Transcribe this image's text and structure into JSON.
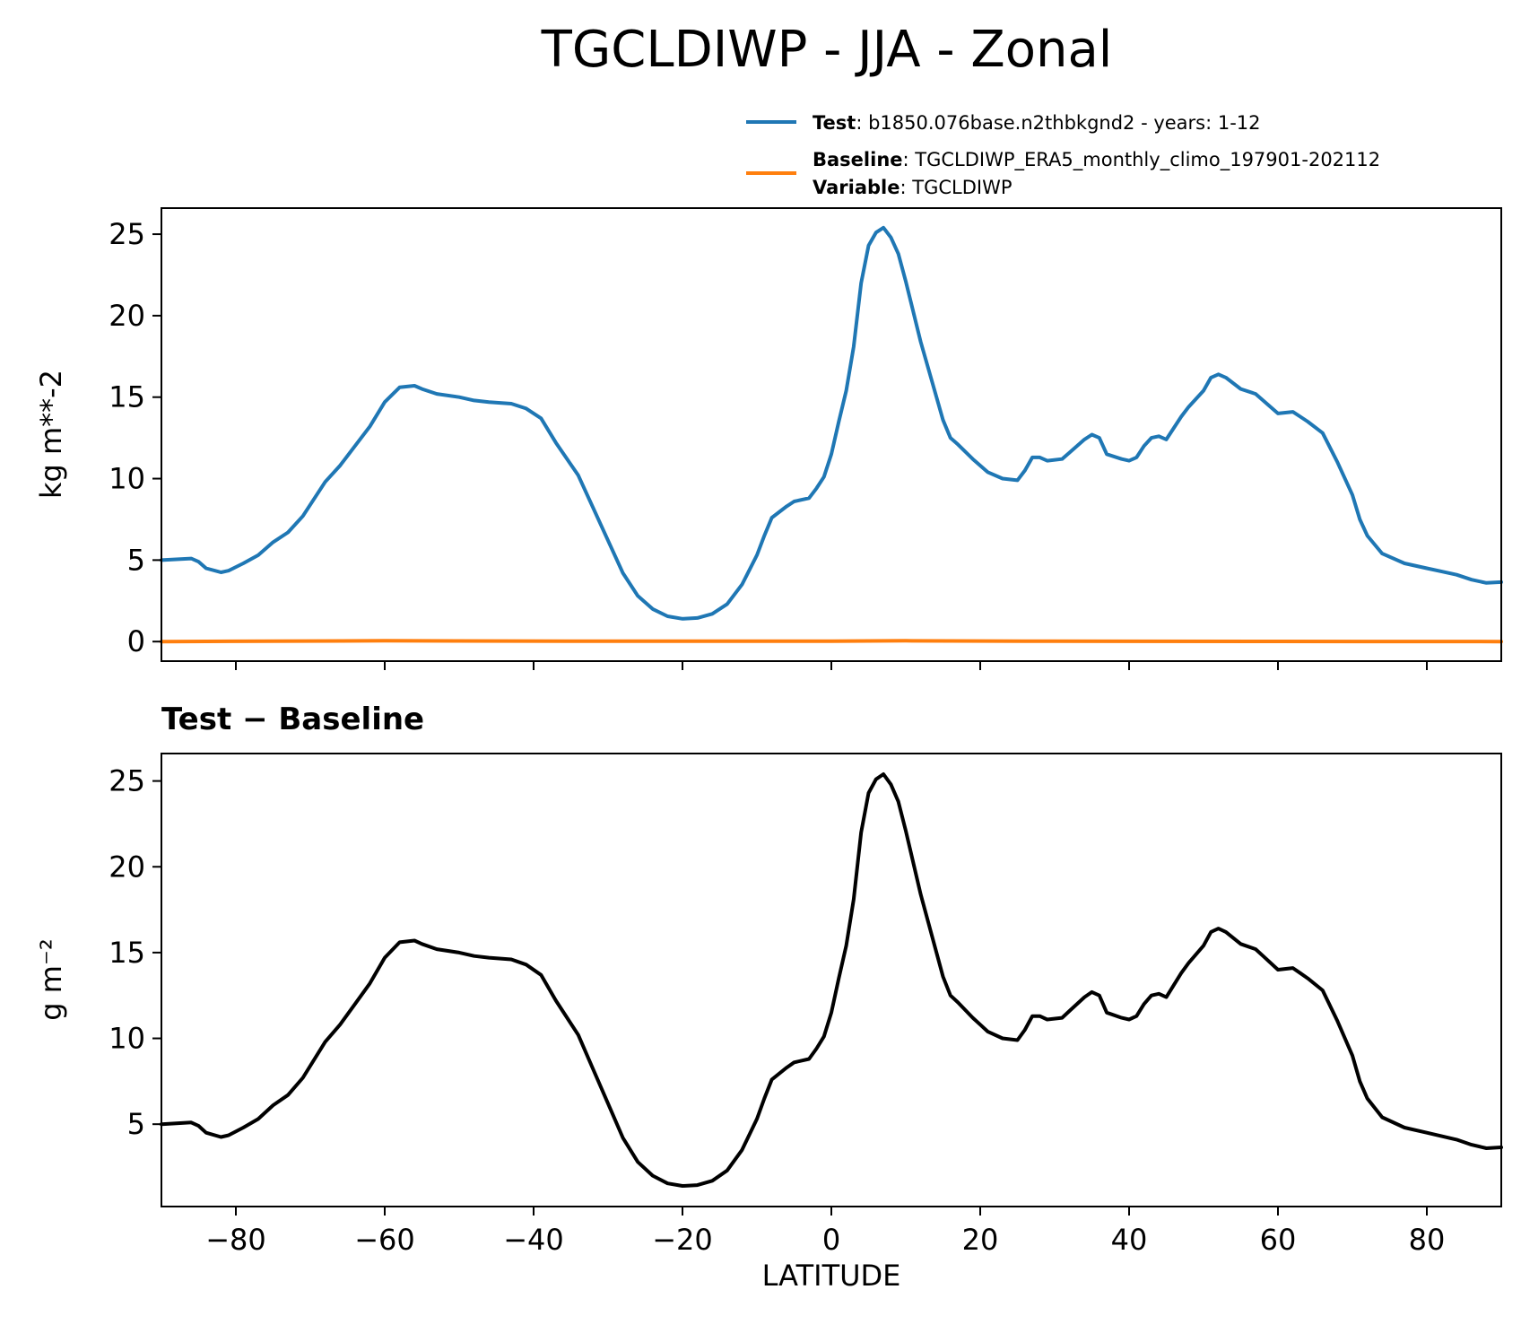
{
  "figure": {
    "title": "TGCLDIWP - JJA - Zonal"
  },
  "legend": {
    "test_key": "Test",
    "test_value": "b1850.076base.n2thbkgnd2 - years: 1-12",
    "baseline_key": "Baseline",
    "baseline_value": "TGCLDIWP_ERA5_monthly_climo_197901-202112",
    "variable_key": "Variable",
    "variable_value": "TGCLDIWP",
    "separator": ": "
  },
  "chart_data": [
    {
      "type": "line",
      "panel": "top",
      "title": "",
      "xlabel": "",
      "ylabel": "kg m**-2",
      "xlim": [
        -90,
        90
      ],
      "ylim": [
        -1.2,
        26.6
      ],
      "xticks": [
        -80,
        -60,
        -40,
        -20,
        0,
        20,
        40,
        60,
        80
      ],
      "yticks": [
        0,
        5,
        10,
        15,
        20,
        25
      ],
      "grid": false,
      "legend_position": "above, right",
      "series": [
        {
          "name": "Test",
          "color": "#1f77b4",
          "x": [
            -90,
            -88,
            -86,
            -85,
            -84,
            -82,
            -81,
            -79,
            -77,
            -75,
            -73,
            -71,
            -68,
            -66,
            -64,
            -62,
            -60,
            -58,
            -56,
            -55,
            -53,
            -50,
            -48,
            -46,
            -43,
            -41,
            -39,
            -37,
            -34,
            -32,
            -30,
            -28,
            -26,
            -24,
            -22,
            -20,
            -18,
            -16,
            -14,
            -12,
            -10,
            -9,
            -8,
            -6,
            -5,
            -3,
            -2,
            -1,
            0,
            1,
            2,
            3,
            4,
            5,
            6,
            7,
            8,
            9,
            10,
            12,
            13,
            15,
            16,
            17,
            19,
            20,
            21,
            23,
            25,
            26,
            27,
            28,
            29,
            31,
            32,
            34,
            35,
            36,
            37,
            39,
            40,
            41,
            42,
            43,
            44,
            45,
            47,
            48,
            50,
            51,
            52,
            53,
            55,
            57,
            58,
            60,
            62,
            63,
            64,
            66,
            68,
            70,
            71,
            72,
            74,
            77,
            80,
            82,
            84,
            86,
            88,
            90
          ],
          "values": [
            5.0,
            5.05,
            5.1,
            4.9,
            4.5,
            4.25,
            4.35,
            4.8,
            5.3,
            6.1,
            6.7,
            7.7,
            9.8,
            10.8,
            12.0,
            13.2,
            14.7,
            15.6,
            15.7,
            15.5,
            15.2,
            15.0,
            14.8,
            14.7,
            14.6,
            14.3,
            13.7,
            12.2,
            10.2,
            8.2,
            6.2,
            4.2,
            2.8,
            2.0,
            1.55,
            1.4,
            1.45,
            1.7,
            2.3,
            3.5,
            5.3,
            6.5,
            7.6,
            8.3,
            8.6,
            8.8,
            9.4,
            10.1,
            11.5,
            13.5,
            15.4,
            18.1,
            22.0,
            24.3,
            25.1,
            25.4,
            24.8,
            23.8,
            22.1,
            18.4,
            16.8,
            13.6,
            12.5,
            12.1,
            11.2,
            10.8,
            10.4,
            10.0,
            9.9,
            10.5,
            11.3,
            11.3,
            11.1,
            11.2,
            11.6,
            12.4,
            12.7,
            12.5,
            11.5,
            11.2,
            11.1,
            11.3,
            12.0,
            12.5,
            12.6,
            12.4,
            13.8,
            14.4,
            15.4,
            16.2,
            16.4,
            16.2,
            15.5,
            15.2,
            14.8,
            14.0,
            14.1,
            13.8,
            13.5,
            12.8,
            11.0,
            9.0,
            7.5,
            6.5,
            5.4,
            4.8,
            4.5,
            4.3,
            4.1,
            3.8,
            3.6,
            3.65
          ]
        },
        {
          "name": "Baseline",
          "color": "#ff7f0e",
          "x": [
            -90,
            -60,
            -30,
            0,
            10,
            30,
            60,
            90
          ],
          "values": [
            0.0,
            0.05,
            0.02,
            0.02,
            0.05,
            0.02,
            0.01,
            0.0
          ]
        }
      ]
    },
    {
      "type": "line",
      "panel": "bottom",
      "title": "Test − Baseline",
      "xlabel": "LATITUDE",
      "ylabel": "g m⁻²",
      "xlim": [
        -90,
        90
      ],
      "ylim": [
        0.2,
        26.6
      ],
      "xticks": [
        -80,
        -60,
        -40,
        -20,
        0,
        20,
        40,
        60,
        80
      ],
      "xticklabels": [
        "−80",
        "−60",
        "−40",
        "−20",
        "0",
        "20",
        "40",
        "60",
        "80"
      ],
      "yticks": [
        5,
        10,
        15,
        20,
        25
      ],
      "grid": false,
      "series": [
        {
          "color": "#000000",
          "x": [
            -90,
            -88,
            -86,
            -85,
            -84,
            -82,
            -81,
            -79,
            -77,
            -75,
            -73,
            -71,
            -68,
            -66,
            -64,
            -62,
            -60,
            -58,
            -56,
            -55,
            -53,
            -50,
            -48,
            -46,
            -43,
            -41,
            -39,
            -37,
            -34,
            -32,
            -30,
            -28,
            -26,
            -24,
            -22,
            -20,
            -18,
            -16,
            -14,
            -12,
            -10,
            -9,
            -8,
            -6,
            -5,
            -3,
            -2,
            -1,
            0,
            1,
            2,
            3,
            4,
            5,
            6,
            7,
            8,
            9,
            10,
            12,
            13,
            15,
            16,
            17,
            19,
            20,
            21,
            23,
            25,
            26,
            27,
            28,
            29,
            31,
            32,
            34,
            35,
            36,
            37,
            39,
            40,
            41,
            42,
            43,
            44,
            45,
            47,
            48,
            50,
            51,
            52,
            53,
            55,
            57,
            58,
            60,
            62,
            63,
            64,
            66,
            68,
            70,
            71,
            72,
            74,
            77,
            80,
            82,
            84,
            86,
            88,
            90
          ],
          "values": [
            5.0,
            5.05,
            5.1,
            4.9,
            4.5,
            4.25,
            4.35,
            4.8,
            5.3,
            6.1,
            6.7,
            7.7,
            9.8,
            10.8,
            12.0,
            13.2,
            14.7,
            15.6,
            15.7,
            15.5,
            15.2,
            15.0,
            14.8,
            14.7,
            14.6,
            14.3,
            13.7,
            12.2,
            10.2,
            8.2,
            6.2,
            4.2,
            2.8,
            2.0,
            1.55,
            1.4,
            1.45,
            1.7,
            2.3,
            3.5,
            5.3,
            6.5,
            7.6,
            8.3,
            8.6,
            8.8,
            9.4,
            10.1,
            11.5,
            13.5,
            15.4,
            18.1,
            22.0,
            24.3,
            25.1,
            25.4,
            24.8,
            23.8,
            22.1,
            18.4,
            16.8,
            13.6,
            12.5,
            12.1,
            11.2,
            10.8,
            10.4,
            10.0,
            9.9,
            10.5,
            11.3,
            11.3,
            11.1,
            11.2,
            11.6,
            12.4,
            12.7,
            12.5,
            11.5,
            11.2,
            11.1,
            11.3,
            12.0,
            12.5,
            12.6,
            12.4,
            13.8,
            14.4,
            15.4,
            16.2,
            16.4,
            16.2,
            15.5,
            15.2,
            14.8,
            14.0,
            14.1,
            13.8,
            13.5,
            12.8,
            11.0,
            9.0,
            7.5,
            6.5,
            5.4,
            4.8,
            4.5,
            4.3,
            4.1,
            3.8,
            3.6,
            3.65
          ]
        }
      ]
    }
  ]
}
